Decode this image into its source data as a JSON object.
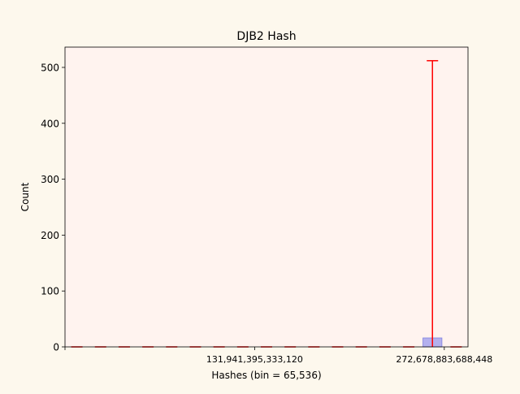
{
  "chart_data": {
    "type": "bar",
    "title": "DJB2 Hash",
    "xlabel": "Hashes (bin = 65,536)",
    "ylabel": "Count",
    "ylim": [
      0,
      536.3
    ],
    "xlim": [
      -0.5,
      16.5
    ],
    "y_ticks": [
      0,
      100,
      200,
      300,
      400,
      500
    ],
    "x_tick_positions": [
      -0.5,
      7.5,
      15.5
    ],
    "x_tick_labels": [
      "",
      "131,941,395,333,120",
      "272,678,883,688,448"
    ],
    "bins": [
      0,
      1,
      2,
      3,
      4,
      5,
      6,
      7,
      8,
      9,
      10,
      11,
      12,
      13,
      14,
      15,
      16
    ],
    "counts": [
      0,
      0,
      0,
      0,
      0,
      0,
      0,
      0,
      0,
      0,
      0,
      0,
      0,
      0,
      0,
      16,
      0
    ],
    "error_upper": [
      0,
      0,
      0,
      0,
      0,
      0,
      0,
      0,
      0,
      0,
      0,
      0,
      0,
      0,
      0,
      512,
      0
    ],
    "bar_color": "#9999ee",
    "error_color": "#ff0000",
    "plot_background": "#fff3ef",
    "figure_background": "#fdf8ed"
  }
}
